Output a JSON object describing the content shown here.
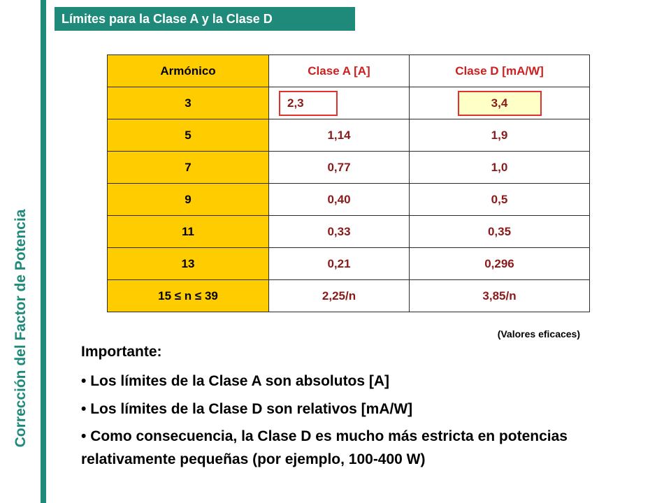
{
  "sidebar": {
    "title": "Corrección del Factor de Potencia"
  },
  "banner": {
    "title": "Límites para la Clase A y la Clase D"
  },
  "table": {
    "headers": [
      "Armónico",
      "Clase A  [A]",
      "Clase D  [mA/W]"
    ],
    "rows": [
      [
        "3",
        "2,3",
        "3,4"
      ],
      [
        "5",
        "1,14",
        "1,9"
      ],
      [
        "7",
        "0,77",
        "1,0"
      ],
      [
        "9",
        "0,40",
        "0,5"
      ],
      [
        "11",
        "0,33",
        "0,35"
      ],
      [
        "13",
        "0,21",
        "0,296"
      ],
      [
        "15 ≤ n ≤ 39",
        "2,25/n",
        "3,85/n"
      ]
    ]
  },
  "note": "(Valores eficaces)",
  "important": {
    "heading": "Importante:",
    "bullets": [
      "Los límites de la Clase A son absolutos [A]",
      "Los límites de la Clase D son relativos [mA/W]",
      "Como consecuencia, la Clase D es mucho más estricta en potencias relativamente pequeñas (por ejemplo, 100-400 W)"
    ]
  },
  "colors": {
    "accent": "#1f8a7a",
    "harmonic_column": "#ffcc00",
    "highlight_border": "#e03030"
  }
}
